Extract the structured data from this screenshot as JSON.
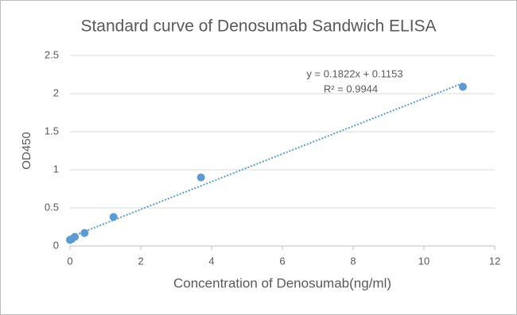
{
  "chart_data": {
    "type": "scatter",
    "title": "Standard curve of Denosumab Sandwich ELISA",
    "x_label": "Concentration of Denosumab(ng/ml)",
    "y_label": "OD450",
    "x": [
      0,
      0.046,
      0.137,
      0.41,
      1.23,
      3.7,
      11.1
    ],
    "values": [
      0.08,
      0.09,
      0.12,
      0.17,
      0.38,
      0.9,
      2.09
    ],
    "color": "#5b9bd5",
    "trendline": {
      "slope": 0.1822,
      "intercept": 0.1153
    },
    "annotations": [
      "y = 0.1822x + 0.1153",
      "R² = 0.9944"
    ],
    "xlim": [
      0,
      12
    ],
    "xticks": [
      0,
      2,
      4,
      6,
      8,
      10,
      12
    ],
    "ylim": [
      0,
      2.5
    ],
    "yticks": [
      0,
      0.5,
      1,
      1.5,
      2,
      2.5
    ],
    "grid": true
  }
}
